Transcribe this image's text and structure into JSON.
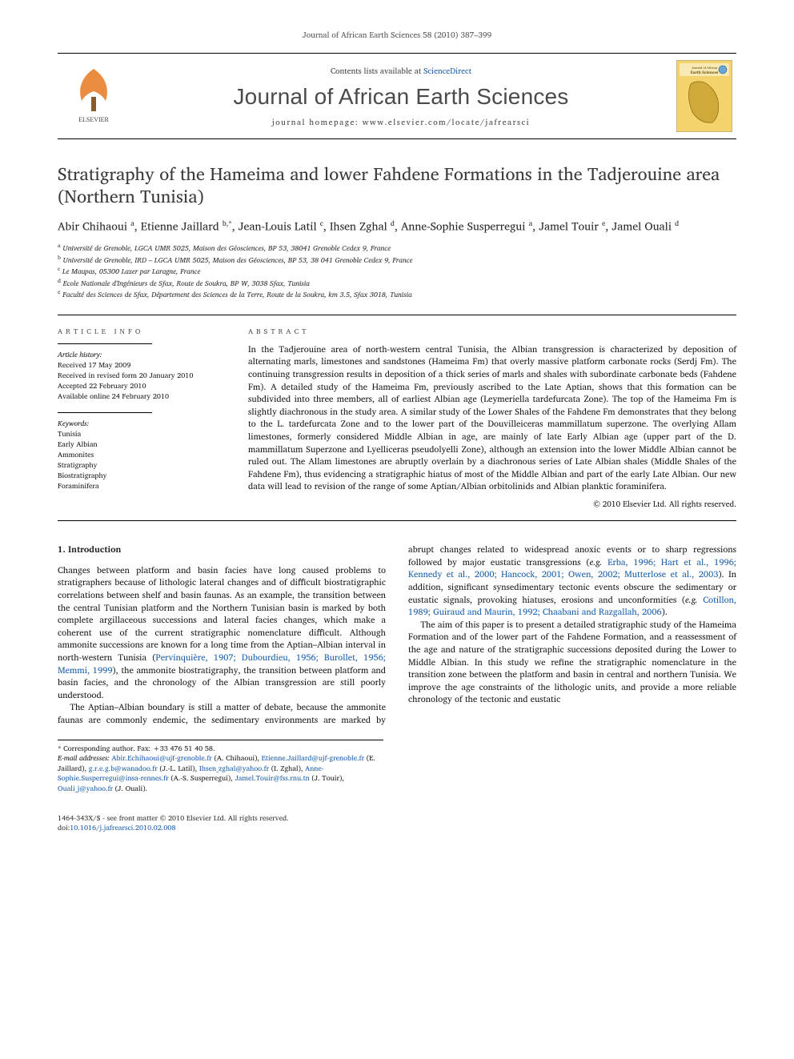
{
  "runningHead": "Journal of African Earth Sciences 58 (2010) 387–399",
  "banner": {
    "contents_prefix": "Contents lists available at ",
    "contents_link": "ScienceDirect",
    "journal": "Journal of African Earth Sciences",
    "homepage_prefix": "journal homepage: ",
    "homepage_url": "www.elsevier.com/locate/jafrearsci",
    "publisher_logo_name": "elsevier-tree-logo",
    "cover_thumb_name": "journal-cover-thumbnail"
  },
  "title": "Stratigraphy of the Hameima and lower Fahdene Formations in the Tadjerouine area (Northern Tunisia)",
  "authors_html": "Abir Chihaoui <sup>a</sup>, Etienne Jaillard <sup>b,*</sup>, Jean-Louis Latil <sup>c</sup>, Ihsen Zghal <sup>d</sup>, Anne-Sophie Susperregui <sup>a</sup>, Jamel Touir <sup>e</sup>, Jamel Ouali <sup>d</sup>",
  "affiliations": [
    {
      "sup": "a",
      "text": "Université de Grenoble, LGCA UMR 5025, Maison des Géosciences, BP 53, 38041 Grenoble Cedex 9, France"
    },
    {
      "sup": "b",
      "text": "Université de Grenoble, IRD – LGCA UMR 5025, Maison des Géosciences, BP 53, 38 041 Grenoble Cedex 9, France"
    },
    {
      "sup": "c",
      "text": "Le Maupas, 05300 Lazer par Laragne, France"
    },
    {
      "sup": "d",
      "text": "Ecole Nationale d'Ingénieurs de Sfax, Route de Soukra, BP W, 3038 Sfax, Tunisia"
    },
    {
      "sup": "e",
      "text": "Faculté des Sciences de Sfax, Département des Sciences de la Terre, Route de la Soukra, km 3.5, Sfax 3018, Tunisia"
    }
  ],
  "info_heading": "article info",
  "history": {
    "label": "Article history:",
    "lines": [
      "Received 17 May 2009",
      "Received in revised form 20 January 2010",
      "Accepted 22 February 2010",
      "Available online 24 February 2010"
    ]
  },
  "keywords": {
    "label": "Keywords:",
    "items": [
      "Tunisia",
      "Early Albian",
      "Ammonites",
      "Stratigraphy",
      "Biostratigraphy",
      "Foraminifera"
    ]
  },
  "abstract_heading": "abstract",
  "abstract_text": "In the Tadjerouine area of north-western central Tunisia, the Albian transgression is characterized by deposition of alternating marls, limestones and sandstones (Hameima Fm) that overly massive platform carbonate rocks (Serdj Fm). The continuing transgression results in deposition of a thick series of marls and shales with subordinate carbonate beds (Fahdene Fm). A detailed study of the Hameima Fm, previously ascribed to the Late Aptian, shows that this formation can be subdivided into three members, all of earliest Albian age (Leymeriella tardefurcata Zone). The top of the Hameima Fm is slightly diachronous in the study area. A similar study of the Lower Shales of the Fahdene Fm demonstrates that they belong to the L. tardefurcata Zone and to the lower part of the Douvilleiceras mammillatum superzone. The overlying Allam limestones, formerly considered Middle Albian in age, are mainly of late Early Albian age (upper part of the D. mammillatum Superzone and Lyelliceras pseudolyelli Zone), although an extension into the lower Middle Albian cannot be ruled out. The Allam limestones are abruptly overlain by a diachronous series of Late Albian shales (Middle Shales of the Fahdene Fm), thus evidencing a stratigraphic hiatus of most of the Middle Albian and part of the early Late Albian. Our new data will lead to revision of the range of some Aptian/Albian orbitolinids and Albian planktic foraminifera.",
  "copyright": "© 2010 Elsevier Ltd. All rights reserved.",
  "section1_heading": "1. Introduction",
  "para1_pre": "Changes between platform and basin facies have long caused problems to stratigraphers because of lithologic lateral changes and of difficult biostratigraphic correlations between shelf and basin faunas. As an example, the transition between the central Tunisian platform and the Northern Tunisian basin is marked by both complete argillaceous successions and lateral facies changes, which make a coherent use of the current stratigraphic nomenclature difficult. Although ammonite successions are known for a long time from the Aptian–Albian interval in north-western Tunisia (",
  "para1_ref": "Pervinquière, 1907; Dubourdieu, 1956; Burollet, 1956; Memmi, 1999",
  "para1_post": "), the ammonite biostratigraphy, the transition between platform and basin facies, and the chronology of the Albian transgression are still poorly understood.",
  "para2_pre": "The Aptian–Albian boundary is still a matter of debate, because the ammonite faunas are commonly endemic, the sedimentary environments are marked by abrupt changes related to widespread anoxic events or to sharp regressions followed by major eustatic transgressions (",
  "para2_eg": "e.g.",
  "para2_ref1": " Erba, 1996; Hart et al., 1996; Kennedy et al., 2000; Hancock, 2001; Owen, 2002; Mutterlose et al., 2003",
  "para2_mid": "). In addition, significant synsedimentary tectonic events obscure the sedimentary or eustatic signals, provoking hiatuses, erosions and unconformities (",
  "para2_ref2": " Cotillon, 1989; Guiraud and Maurin, 1992; Chaabani and Razgallah, 2006",
  "para2_post": ").",
  "para3": "The aim of this paper is to present a detailed stratigraphic study of the Hameima Formation and of the lower part of the Fahdene Formation, and a reassessment of the age and nature of the stratigraphic successions deposited during the Lower to Middle Albian. In this study we refine the stratigraphic nomenclature in the transition zone between the platform and basin in central and northern Tunisia. We improve the age constraints of the lithologic units, and provide a more reliable chronology of the tectonic and eustatic",
  "footnotes": {
    "corr": "* Corresponding author. Fax: +33 476 51 40 58.",
    "emails_label": "E-mail addresses:",
    "emails": [
      {
        "addr": "Abir.Echihaoui@ujf-grenoble.fr",
        "who": "(A. Chihaoui)"
      },
      {
        "addr": "Etienne.Jaillard@ujf-grenoble.fr",
        "who": "(E. Jaillard)"
      },
      {
        "addr": "g.r.e.g.b@wanadoo.fr",
        "who": "(J.-L. Latil)"
      },
      {
        "addr": "Ihsen_zghal@yahoo.fr",
        "who": "(I. Zghal)"
      },
      {
        "addr": "Anne-Sophie.Susperregui@insa-rennes.fr",
        "who": "(A.-S. Susperregui)"
      },
      {
        "addr": "Jamel.Touir@fss.rnu.tn",
        "who": "(J. Touir)"
      },
      {
        "addr": "Ouali_j@yahoo.fr",
        "who": "(J. Ouali)"
      }
    ]
  },
  "bottom": {
    "issn_line": "1464-343X/$ - see front matter © 2010 Elsevier Ltd. All rights reserved.",
    "doi_label": "doi:",
    "doi": "10.1016/j.jafrearsci.2010.02.008"
  },
  "colors": {
    "link": "#1b5faa",
    "text": "#1a1a1a",
    "muted": "#555555",
    "journal_grey": "#4a4a4a",
    "cover_yellow": "#f3d36a",
    "cover_blue": "#6aa5d8"
  }
}
